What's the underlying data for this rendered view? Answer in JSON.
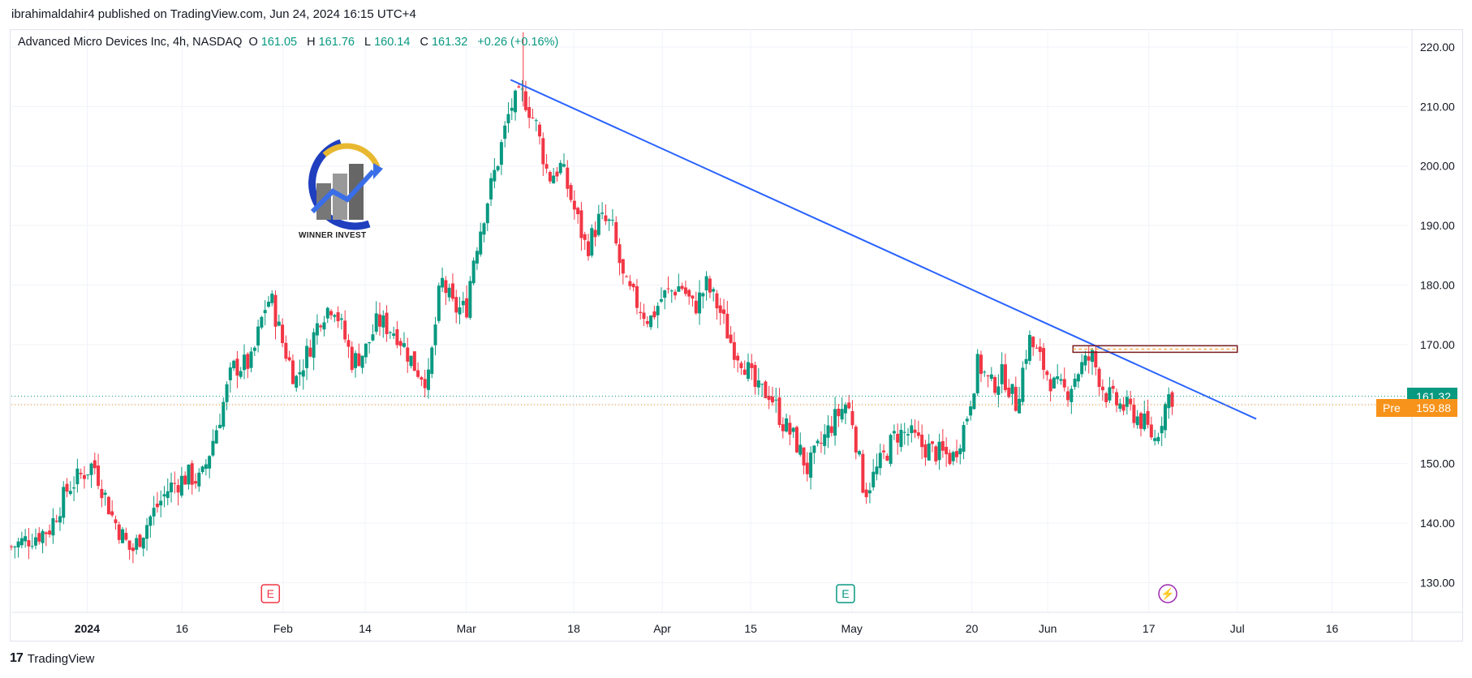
{
  "publish_line": "ibrahimaldahir4 published on TradingView.com, Jun 24, 2024 16:15 UTC+4",
  "legend": {
    "symbol": "Advanced Micro Devices Inc, 4h, NASDAQ",
    "o_label": "O",
    "o_value": "161.05",
    "h_label": "H",
    "h_value": "161.76",
    "l_label": "L",
    "l_value": "160.14",
    "c_label": "C",
    "c_value": "161.32",
    "change": "+0.26 (+0.16%)"
  },
  "logo_text": "WINNER INVEST",
  "last_price_label": "161.32",
  "pre_label": "Pre",
  "pre_price_label": "159.88",
  "footer_brand": "TradingView",
  "colors": {
    "up": "#089981",
    "down": "#f23645",
    "trendline": "#2962ff",
    "last_price_bg": "#089981",
    "pre_bg": "#f7931a",
    "zone_border": "#7a1c1c",
    "zone_dash": "#f7931a"
  },
  "chart_data": {
    "type": "candlestick",
    "y_ticks": [
      "220.00",
      "210.00",
      "200.00",
      "190.00",
      "180.00",
      "170.00",
      "160.00",
      "150.00",
      "140.00",
      "130.00"
    ],
    "ylim": [
      125,
      223
    ],
    "x_ticks": [
      "2024",
      "16",
      "Feb",
      "14",
      "Mar",
      "18",
      "Apr",
      "15",
      "May",
      "20",
      "Jun",
      "17",
      "Jul",
      "16"
    ],
    "x_tick_dates": [
      "2024-01-01",
      "2024-01-16",
      "2024-02-01",
      "2024-02-14",
      "2024-03-01",
      "2024-03-18",
      "2024-04-01",
      "2024-04-15",
      "2024-05-01",
      "2024-05-20",
      "2024-06-01",
      "2024-06-17",
      "2024-07-01",
      "2024-07-16"
    ],
    "xlim": [
      "2023-12-20",
      "2024-07-28"
    ],
    "close_path": [
      [
        "2023-12-20",
        136
      ],
      [
        "2023-12-26",
        139
      ],
      [
        "2023-12-29",
        146
      ],
      [
        "2024-01-02",
        150
      ],
      [
        "2024-01-05",
        141
      ],
      [
        "2024-01-08",
        135
      ],
      [
        "2024-01-11",
        141
      ],
      [
        "2024-01-14",
        146
      ],
      [
        "2024-01-17",
        148
      ],
      [
        "2024-01-19",
        147
      ],
      [
        "2024-01-22",
        158
      ],
      [
        "2024-01-24",
        166
      ],
      [
        "2024-01-27",
        167
      ],
      [
        "2024-01-29",
        176
      ],
      [
        "2024-01-30",
        178
      ],
      [
        "2024-02-01",
        170
      ],
      [
        "2024-02-03",
        164
      ],
      [
        "2024-02-05",
        169
      ],
      [
        "2024-02-07",
        175
      ],
      [
        "2024-02-09",
        177
      ],
      [
        "2024-02-12",
        167
      ],
      [
        "2024-02-14",
        169
      ],
      [
        "2024-02-16",
        174
      ],
      [
        "2024-02-19",
        172
      ],
      [
        "2024-02-21",
        168
      ],
      [
        "2024-02-22",
        166
      ],
      [
        "2024-02-24",
        164
      ],
      [
        "2024-02-26",
        181
      ],
      [
        "2024-02-28",
        176
      ],
      [
        "2024-03-01",
        176
      ],
      [
        "2024-03-02",
        184
      ],
      [
        "2024-03-04",
        193
      ],
      [
        "2024-03-06",
        201
      ],
      [
        "2024-03-08",
        210
      ],
      [
        "2024-03-10",
        212
      ],
      [
        "2024-03-12",
        207
      ],
      [
        "2024-03-14",
        198
      ],
      [
        "2024-03-16",
        200
      ],
      [
        "2024-03-18",
        193
      ],
      [
        "2024-03-20",
        186
      ],
      [
        "2024-03-22",
        191
      ],
      [
        "2024-03-24",
        190
      ],
      [
        "2024-03-26",
        180
      ],
      [
        "2024-03-28",
        177
      ],
      [
        "2024-03-30",
        174
      ],
      [
        "2024-04-01",
        178
      ],
      [
        "2024-04-04",
        180
      ],
      [
        "2024-04-06",
        176
      ],
      [
        "2024-04-08",
        180
      ],
      [
        "2024-04-10",
        176
      ],
      [
        "2024-04-12",
        170
      ],
      [
        "2024-04-14",
        167
      ],
      [
        "2024-04-16",
        162
      ],
      [
        "2024-04-18",
        162
      ],
      [
        "2024-04-20",
        157
      ],
      [
        "2024-04-22",
        154
      ],
      [
        "2024-04-24",
        149
      ],
      [
        "2024-04-26",
        153
      ],
      [
        "2024-04-28",
        157
      ],
      [
        "2024-04-30",
        160
      ],
      [
        "2024-05-01",
        158
      ],
      [
        "2024-05-03",
        145
      ],
      [
        "2024-05-06",
        151
      ],
      [
        "2024-05-08",
        155
      ],
      [
        "2024-05-10",
        155
      ],
      [
        "2024-05-12",
        153
      ],
      [
        "2024-05-14",
        152
      ],
      [
        "2024-05-17",
        151
      ],
      [
        "2024-05-19",
        157
      ],
      [
        "2024-05-21",
        167
      ],
      [
        "2024-05-23",
        163
      ],
      [
        "2024-05-25",
        165
      ],
      [
        "2024-05-27",
        160
      ],
      [
        "2024-05-29",
        171
      ],
      [
        "2024-05-31",
        167
      ],
      [
        "2024-06-02",
        163
      ],
      [
        "2024-06-04",
        162
      ],
      [
        "2024-06-06",
        166
      ],
      [
        "2024-06-08",
        168
      ],
      [
        "2024-06-10",
        162
      ],
      [
        "2024-06-12",
        160
      ],
      [
        "2024-06-14",
        159
      ],
      [
        "2024-06-16",
        157
      ],
      [
        "2024-06-18",
        154
      ],
      [
        "2024-06-20",
        161.3
      ],
      [
        "2024-06-21",
        161.32
      ]
    ],
    "trendline": {
      "from": [
        "2024-03-08",
        214.5
      ],
      "to": [
        "2024-07-04",
        157.5
      ]
    },
    "zone": {
      "from": "2024-06-05",
      "to": "2024-07-01",
      "top": 169.8,
      "bottom": 168.7
    },
    "last_price": 161.32,
    "pre_price": 159.88,
    "events": [
      {
        "date": "2024-01-30",
        "label": "E",
        "color": "#f23645"
      },
      {
        "date": "2024-04-30",
        "label": "E",
        "color": "#089981"
      },
      {
        "date": "2024-06-20",
        "label": "⚡",
        "color": "#9c27b0"
      }
    ]
  }
}
